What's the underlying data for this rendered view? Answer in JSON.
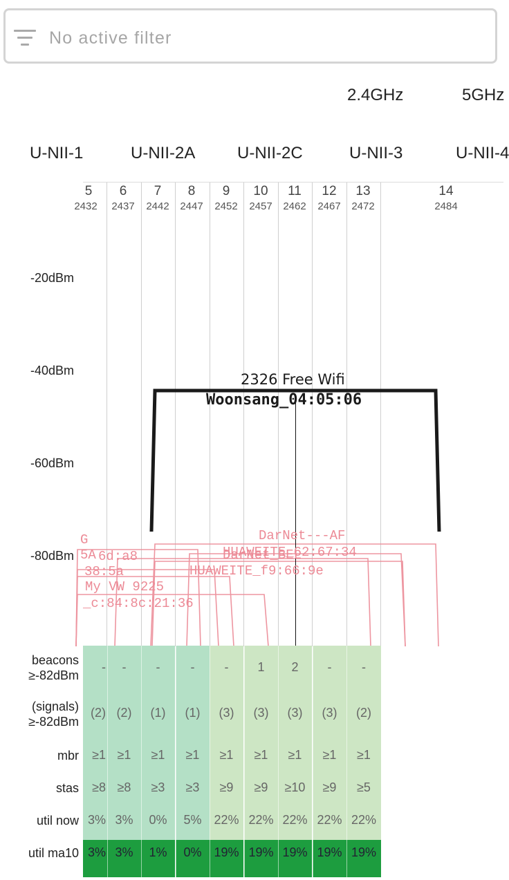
{
  "filter": {
    "placeholder": "No active filter",
    "icon": "filter-icon"
  },
  "bands": [
    "2.4GHz",
    "5GHz"
  ],
  "unii": [
    "U-NII-1",
    "U-NII-2A",
    "U-NII-2C",
    "U-NII-3",
    "U-NII-4"
  ],
  "channels": [
    {
      "ch": "5",
      "freq": "2432"
    },
    {
      "ch": "6",
      "freq": "2437"
    },
    {
      "ch": "7",
      "freq": "2442"
    },
    {
      "ch": "8",
      "freq": "2447"
    },
    {
      "ch": "9",
      "freq": "2452"
    },
    {
      "ch": "10",
      "freq": "2457"
    },
    {
      "ch": "11",
      "freq": "2462"
    },
    {
      "ch": "12",
      "freq": "2467"
    },
    {
      "ch": "13",
      "freq": "2472"
    },
    {
      "ch": "14",
      "freq": "2484"
    }
  ],
  "dbm_axis": [
    "-20dBm",
    "-40dBm",
    "-60dBm",
    "-80dBm"
  ],
  "main_ap": {
    "name": "2326 Free Wifi",
    "bssid": "Woonsang_04:05:06"
  },
  "faint_aps": [
    "G",
    "5A",
    "6d:a8",
    "38:5a",
    "My VW 9225",
    "_c:84:8c:21:36",
    "DarNet---AF",
    "HUAWEITE_62:67:34",
    "DarNet_BEL",
    "HUAWEITE_f9:66:9e"
  ],
  "stats": {
    "labels": [
      "beacons\n≥-82dBm",
      "(signals)\n≥-82dBm",
      "mbr",
      "stas",
      "util now",
      "util ma10"
    ],
    "beacons": [
      "-",
      "-",
      "-",
      "-",
      "-",
      "1",
      "2",
      "-",
      "-"
    ],
    "signals": [
      "(2)",
      "(2)",
      "(1)",
      "(1)",
      "(3)",
      "(3)",
      "(3)",
      "(3)",
      "(2)"
    ],
    "mbr": [
      "≥1",
      "≥1",
      "≥1",
      "≥1",
      "≥1",
      "≥1",
      "≥1",
      "≥1",
      "≥1"
    ],
    "stas": [
      "≥8",
      "≥8",
      "≥3",
      "≥3",
      "≥9",
      "≥9",
      "≥10",
      "≥9",
      "≥5"
    ],
    "util_now": [
      "3%",
      "3%",
      "0%",
      "5%",
      "22%",
      "22%",
      "22%",
      "22%",
      "22%"
    ],
    "util_ma10": [
      "3%",
      "3%",
      "1%",
      "0%",
      "19%",
      "19%",
      "19%",
      "19%",
      "19%"
    ]
  },
  "colors": {
    "grid_light": "#b4e0c6",
    "grid_light2": "#cde6c4",
    "grid_dark": "#1d9d3f",
    "ap_faint": "#ec8a96",
    "ap_main": "#1a1a1a"
  }
}
